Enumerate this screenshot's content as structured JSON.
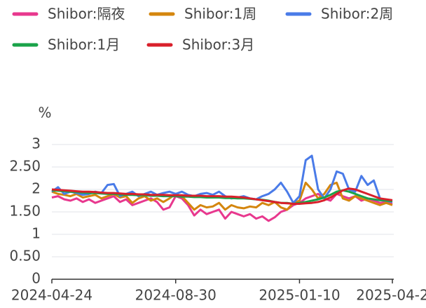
{
  "chart_data": {
    "type": "line",
    "y_axis_label": "%",
    "categories": [
      "2024-04-24",
      null,
      null,
      null,
      null,
      null,
      null,
      null,
      null,
      null,
      null,
      null,
      null,
      null,
      null,
      null,
      null,
      null,
      null,
      null,
      "2024-08-30",
      null,
      null,
      null,
      null,
      null,
      null,
      null,
      null,
      null,
      null,
      null,
      null,
      null,
      null,
      null,
      null,
      null,
      null,
      null,
      "2025-01-10",
      null,
      null,
      null,
      null,
      null,
      null,
      null,
      null,
      null,
      null,
      null,
      null,
      null,
      null,
      "2025-04-2"
    ],
    "ylim": [
      0,
      3
    ],
    "yticks": [
      0,
      {
        "value": 0.5,
        "label": "0.50"
      },
      1,
      {
        "value": 1.5,
        "label": "1.50"
      },
      2,
      {
        "value": 2.5,
        "label": "2.50"
      },
      3
    ],
    "grid": true,
    "series": [
      {
        "name": "Shibor:隔夜",
        "color": "#e8388e",
        "values": [
          1.82,
          1.85,
          1.78,
          1.75,
          1.8,
          1.72,
          1.78,
          1.7,
          1.75,
          1.8,
          1.85,
          1.72,
          1.78,
          1.65,
          1.7,
          1.75,
          1.8,
          1.72,
          1.55,
          1.6,
          1.85,
          1.8,
          1.65,
          1.42,
          1.55,
          1.45,
          1.5,
          1.55,
          1.35,
          1.5,
          1.45,
          1.4,
          1.45,
          1.35,
          1.4,
          1.3,
          1.38,
          1.5,
          1.55,
          1.65,
          1.7,
          1.8,
          1.85,
          1.9,
          1.8,
          1.75,
          1.9,
          1.85,
          1.8,
          1.85,
          1.75,
          1.8,
          1.75,
          1.7,
          1.72,
          1.68
        ]
      },
      {
        "name": "Shibor:1周",
        "color": "#d4860e",
        "values": [
          1.95,
          1.9,
          1.88,
          1.85,
          1.9,
          1.82,
          1.85,
          1.88,
          1.8,
          1.85,
          1.9,
          1.82,
          1.85,
          1.7,
          1.8,
          1.85,
          1.75,
          1.8,
          1.72,
          1.8,
          1.9,
          1.85,
          1.7,
          1.55,
          1.65,
          1.6,
          1.62,
          1.7,
          1.55,
          1.65,
          1.6,
          1.58,
          1.62,
          1.6,
          1.7,
          1.65,
          1.72,
          1.6,
          1.55,
          1.7,
          1.75,
          2.15,
          2.0,
          1.8,
          1.9,
          2.1,
          2.15,
          1.8,
          1.75,
          1.85,
          1.8,
          1.75,
          1.7,
          1.65,
          1.7,
          1.65
        ]
      },
      {
        "name": "Shibor:2周",
        "color": "#4a7be8",
        "values": [
          1.95,
          2.05,
          1.9,
          1.95,
          1.92,
          1.88,
          1.9,
          1.95,
          1.92,
          2.1,
          2.12,
          1.85,
          1.9,
          1.95,
          1.85,
          1.9,
          1.95,
          1.88,
          1.92,
          1.95,
          1.9,
          1.95,
          1.88,
          1.85,
          1.9,
          1.92,
          1.88,
          1.95,
          1.85,
          1.8,
          1.82,
          1.85,
          1.8,
          1.78,
          1.85,
          1.9,
          2.0,
          2.15,
          1.95,
          1.7,
          1.85,
          2.65,
          2.75,
          2.0,
          1.8,
          2.0,
          2.4,
          2.35,
          2.0,
          1.95,
          2.3,
          2.1,
          2.2,
          1.8,
          1.75,
          1.72
        ]
      },
      {
        "name": "Shibor:1月",
        "color": "#1aa34a",
        "values": [
          1.98,
          1.97,
          1.96,
          1.95,
          1.94,
          1.93,
          1.92,
          1.92,
          1.91,
          1.9,
          1.9,
          1.89,
          1.88,
          1.88,
          1.87,
          1.87,
          1.86,
          1.86,
          1.85,
          1.85,
          1.85,
          1.84,
          1.84,
          1.83,
          1.83,
          1.82,
          1.82,
          1.82,
          1.81,
          1.81,
          1.8,
          1.8,
          1.79,
          1.78,
          1.77,
          1.75,
          1.72,
          1.7,
          1.7,
          1.68,
          1.7,
          1.72,
          1.75,
          1.78,
          1.82,
          1.88,
          1.95,
          1.98,
          1.95,
          1.9,
          1.85,
          1.8,
          1.78,
          1.76,
          1.75,
          1.74
        ]
      },
      {
        "name": "Shibor:3月",
        "color": "#d9202b",
        "values": [
          2.0,
          1.99,
          1.98,
          1.97,
          1.96,
          1.95,
          1.95,
          1.94,
          1.93,
          1.92,
          1.92,
          1.91,
          1.9,
          1.9,
          1.89,
          1.89,
          1.88,
          1.88,
          1.88,
          1.87,
          1.87,
          1.87,
          1.86,
          1.86,
          1.86,
          1.85,
          1.85,
          1.85,
          1.84,
          1.84,
          1.83,
          1.82,
          1.8,
          1.78,
          1.76,
          1.74,
          1.72,
          1.7,
          1.69,
          1.68,
          1.68,
          1.69,
          1.7,
          1.72,
          1.76,
          1.82,
          1.9,
          1.98,
          2.02,
          2.0,
          1.95,
          1.9,
          1.85,
          1.8,
          1.78,
          1.76
        ]
      }
    ]
  }
}
